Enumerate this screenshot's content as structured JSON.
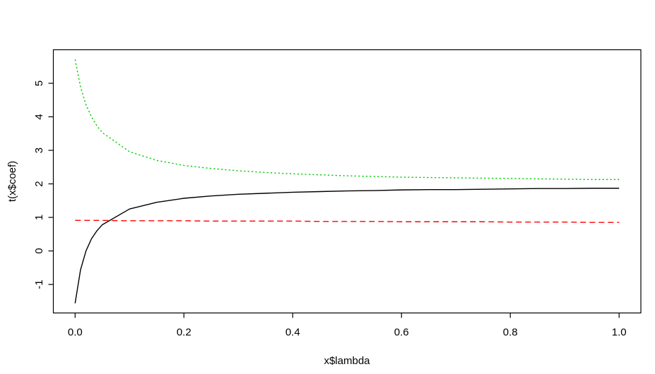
{
  "window": {
    "background": "#ffffff"
  },
  "chart_data": {
    "type": "line",
    "title": "",
    "xlabel": "x$lambda",
    "ylabel": "t(x$coef)",
    "grid": false,
    "legend": "none",
    "xlim": [
      -0.04,
      1.04
    ],
    "ylim": [
      -1.85,
      6.0
    ],
    "xticks": {
      "values": [
        0.0,
        0.2,
        0.4,
        0.6,
        0.8,
        1.0
      ],
      "labels": [
        "0.0",
        "0.2",
        "0.4",
        "0.6",
        "0.8",
        "1.0"
      ]
    },
    "yticks": {
      "values": [
        -1,
        0,
        1,
        2,
        3,
        4,
        5
      ],
      "labels": [
        "-1",
        "0",
        "1",
        "2",
        "3",
        "4",
        "5"
      ]
    },
    "x": [
      0.0,
      0.01,
      0.02,
      0.03,
      0.04,
      0.05,
      0.1,
      0.15,
      0.2,
      0.25,
      0.3,
      0.35,
      0.4,
      0.45,
      0.5,
      0.55,
      0.6,
      0.65,
      0.7,
      0.75,
      0.8,
      0.85,
      0.9,
      0.95,
      1.0
    ],
    "series": [
      {
        "name": "coef-1-black-solid",
        "color": "#000000",
        "linestyle": "solid",
        "values": [
          -1.56,
          -0.56,
          0.0,
          0.36,
          0.6,
          0.78,
          1.25,
          1.45,
          1.57,
          1.64,
          1.69,
          1.72,
          1.75,
          1.77,
          1.79,
          1.8,
          1.82,
          1.83,
          1.83,
          1.84,
          1.85,
          1.86,
          1.86,
          1.87,
          1.87
        ]
      },
      {
        "name": "coef-2-red-dashed",
        "color": "#ff0000",
        "linestyle": "dashed",
        "values": [
          0.91,
          0.91,
          0.91,
          0.91,
          0.91,
          0.91,
          0.9,
          0.9,
          0.9,
          0.89,
          0.89,
          0.89,
          0.89,
          0.88,
          0.88,
          0.88,
          0.87,
          0.87,
          0.87,
          0.87,
          0.86,
          0.86,
          0.86,
          0.85,
          0.85
        ]
      },
      {
        "name": "coef-3-green-dotted",
        "color": "#00cd00",
        "linestyle": "dotted",
        "values": [
          5.71,
          4.89,
          4.36,
          4.0,
          3.73,
          3.53,
          2.96,
          2.7,
          2.55,
          2.46,
          2.39,
          2.34,
          2.3,
          2.27,
          2.24,
          2.22,
          2.2,
          2.19,
          2.18,
          2.17,
          2.16,
          2.15,
          2.14,
          2.13,
          2.13
        ]
      }
    ]
  }
}
